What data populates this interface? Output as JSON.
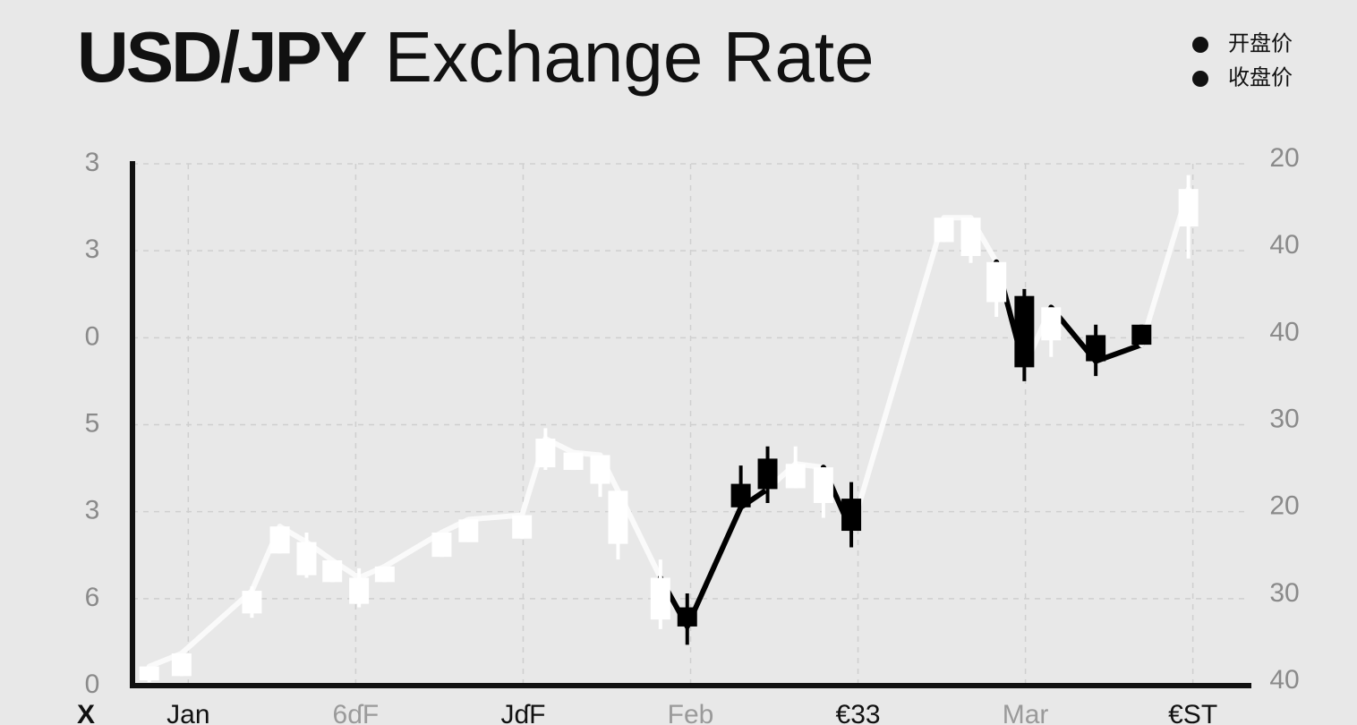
{
  "chart_data": {
    "type": "candlestick",
    "title": {
      "bold": "USD/JPY",
      "rest": "Exchange Rate"
    },
    "x_label": "X",
    "x": [
      1.5,
      4.4,
      10.7,
      13.2,
      15.6,
      17.9,
      20.3,
      22.6,
      27.7,
      30.1,
      34.9,
      37.0,
      39.5,
      41.9,
      43.5,
      47.3,
      49.7,
      54.5,
      56.9,
      59.4,
      61.9,
      64.4,
      72.7,
      75.1,
      77.4,
      79.9,
      82.3,
      86.3,
      90.4,
      94.6
    ],
    "series": [
      {
        "name": "开盘价",
        "color": "#111111",
        "values": [
          0.06,
          0.11,
          0.83,
          1.52,
          1.27,
          1.19,
          0.94,
          1.19,
          1.48,
          1.65,
          1.69,
          2.51,
          2.48,
          2.32,
          1.63,
          0.76,
          0.9,
          2.32,
          2.61,
          2.27,
          2.1,
          2.15,
          5.1,
          4.94,
          4.41,
          4.48,
          3.97,
          4.03,
          4.15,
          5.28
        ]
      },
      {
        "name": "收盘价",
        "color": "#111111",
        "values": [
          0.22,
          0.37,
          1.09,
          1.83,
          1.65,
          1.44,
          1.24,
          1.37,
          1.76,
          1.91,
          1.96,
          2.84,
          2.68,
          2.65,
          2.24,
          1.24,
          0.68,
          2.05,
          2.26,
          2.55,
          2.51,
          1.78,
          5.38,
          5.38,
          4.87,
          3.66,
          4.35,
          3.73,
          3.92,
          5.71
        ]
      }
    ],
    "high": [
      0.22,
      0.37,
      1.14,
      1.83,
      1.76,
      1.44,
      1.35,
      1.37,
      1.76,
      1.91,
      1.96,
      2.96,
      2.68,
      2.65,
      2.24,
      1.45,
      1.06,
      2.53,
      2.75,
      2.75,
      2.51,
      2.34,
      5.38,
      5.38,
      4.87,
      4.56,
      4.35,
      4.15,
      4.15,
      5.87
    ],
    "low": [
      0.04,
      0.11,
      0.78,
      1.52,
      1.24,
      1.19,
      0.9,
      1.19,
      1.48,
      1.65,
      1.69,
      2.48,
      2.48,
      2.17,
      1.45,
      0.65,
      0.47,
      2.03,
      2.1,
      2.27,
      1.93,
      1.59,
      5.1,
      4.86,
      4.24,
      3.5,
      3.78,
      3.56,
      3.92,
      4.91
    ],
    "up_color": "#ffffff",
    "down_color": "#000000",
    "xlim": [
      0,
      100
    ],
    "xticks": [
      {
        "value": 5,
        "label": "Jan"
      },
      {
        "value": 20,
        "label": "6ɗF"
      },
      {
        "value": 35,
        "label": "JɗF"
      },
      {
        "value": 50,
        "label": "Feb"
      },
      {
        "value": 65,
        "label": "€33"
      },
      {
        "value": 80,
        "label": "Mar"
      },
      {
        "value": 95,
        "label": "€ST"
      }
    ],
    "ylim": [
      0,
      6
    ],
    "yticks": [
      0,
      {
        "value": 1,
        "label": "6"
      },
      {
        "value": 2,
        "label": "3"
      },
      {
        "value": 3,
        "label": "5"
      },
      {
        "value": 4,
        "label": "0"
      },
      {
        "value": 5,
        "label": "3"
      },
      {
        "value": 6,
        "label": "3"
      }
    ],
    "y2lim": [
      0,
      6
    ],
    "y2ticks": [
      {
        "value": 0,
        "label": "40"
      },
      {
        "value": 1,
        "label": "30"
      },
      {
        "value": 2,
        "label": "20"
      },
      {
        "value": 3,
        "label": "30"
      },
      {
        "value": 4,
        "label": "40"
      },
      {
        "value": 5,
        "label": "40"
      },
      {
        "value": 6,
        "label": "20"
      }
    ],
    "grid": true,
    "legend": "top-right"
  }
}
